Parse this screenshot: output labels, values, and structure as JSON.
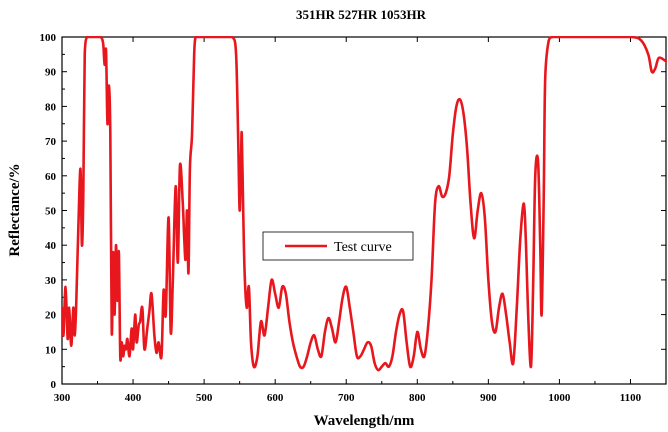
{
  "chart_data": {
    "type": "line",
    "title": "351HR 527HR 1053HR",
    "xlabel": "Wavelength/nm",
    "ylabel": "Reflectance/%",
    "xlim": [
      300,
      1150
    ],
    "ylim": [
      0,
      100
    ],
    "xticks": [
      300,
      400,
      500,
      600,
      700,
      800,
      900,
      1000,
      1100
    ],
    "yticks": [
      0,
      10,
      20,
      30,
      40,
      50,
      60,
      70,
      80,
      90,
      100
    ],
    "grid": false,
    "legend": "center-left",
    "colors": {
      "series": "#e8171d",
      "axes": "#000000"
    },
    "series": [
      {
        "name": "Test curve",
        "x": [
          300,
          302,
          305,
          308,
          310,
          313,
          316,
          318,
          320,
          323,
          326,
          328,
          330,
          332,
          335,
          338,
          340,
          342,
          345,
          350,
          355,
          358,
          360,
          362,
          364,
          366,
          368,
          370,
          372,
          374,
          376,
          378,
          380,
          382,
          384,
          386,
          388,
          390,
          392,
          395,
          398,
          400,
          403,
          405,
          408,
          410,
          413,
          416,
          420,
          423,
          426,
          430,
          433,
          436,
          440,
          443,
          446,
          450,
          453,
          456,
          460,
          463,
          466,
          470,
          472,
          474,
          476,
          478,
          480,
          483,
          486,
          488,
          490,
          492,
          494,
          496,
          498,
          500,
          503,
          506,
          510,
          520,
          530,
          540,
          545,
          548,
          550,
          552,
          553,
          555,
          557,
          560,
          563,
          566,
          570,
          575,
          580,
          585,
          590,
          595,
          600,
          605,
          610,
          615,
          620,
          625,
          630,
          635,
          640,
          645,
          650,
          655,
          660,
          665,
          670,
          675,
          680,
          685,
          690,
          695,
          700,
          705,
          710,
          715,
          720,
          725,
          730,
          735,
          740,
          745,
          750,
          755,
          760,
          765,
          770,
          775,
          780,
          785,
          790,
          795,
          800,
          805,
          810,
          815,
          820,
          825,
          830,
          835,
          840,
          845,
          850,
          855,
          860,
          865,
          870,
          875,
          880,
          885,
          890,
          895,
          900,
          905,
          910,
          915,
          920,
          925,
          930,
          935,
          940,
          945,
          950,
          953,
          956,
          960,
          963,
          966,
          970,
          973,
          975,
          978,
          980,
          985,
          990,
          1000,
          1050,
          1100,
          1115,
          1125,
          1130,
          1135,
          1140,
          1150
        ],
        "y": [
          22,
          14,
          28,
          13,
          22,
          11,
          22,
          14,
          23,
          45,
          62,
          40,
          55,
          95,
          100,
          100,
          100,
          100,
          100,
          100,
          100,
          98,
          92,
          96,
          75,
          86,
          72,
          15,
          38,
          20,
          40,
          24,
          38,
          8,
          12,
          8,
          11,
          10,
          13,
          8,
          16,
          10,
          20,
          12,
          17,
          18,
          22,
          10,
          16,
          21,
          26,
          14,
          9,
          12,
          8,
          27,
          20,
          48,
          15,
          30,
          57,
          35,
          63,
          52,
          42,
          36,
          50,
          32,
          62,
          72,
          95,
          100,
          100,
          100,
          100,
          100,
          100,
          100,
          100,
          100,
          100,
          100,
          100,
          100,
          95,
          70,
          50,
          65,
          72,
          50,
          32,
          22,
          28,
          12,
          5,
          8,
          18,
          14,
          22,
          30,
          26,
          22,
          28,
          26,
          18,
          12,
          8,
          5,
          5,
          8,
          12,
          14,
          10,
          8,
          15,
          19,
          16,
          12,
          18,
          25,
          28,
          22,
          15,
          8,
          8,
          10,
          12,
          11,
          6,
          4,
          5,
          6,
          5,
          8,
          15,
          20,
          21,
          12,
          5,
          8,
          15,
          10,
          8,
          16,
          30,
          52,
          57,
          54,
          55,
          60,
          72,
          80,
          82,
          78,
          68,
          52,
          42,
          50,
          55,
          48,
          30,
          18,
          15,
          22,
          26,
          20,
          12,
          6,
          22,
          42,
          52,
          40,
          20,
          5,
          28,
          60,
          64,
          40,
          20,
          55,
          88,
          99,
          100,
          100,
          100,
          100,
          99,
          95,
          90,
          91,
          94,
          93
        ]
      }
    ]
  }
}
